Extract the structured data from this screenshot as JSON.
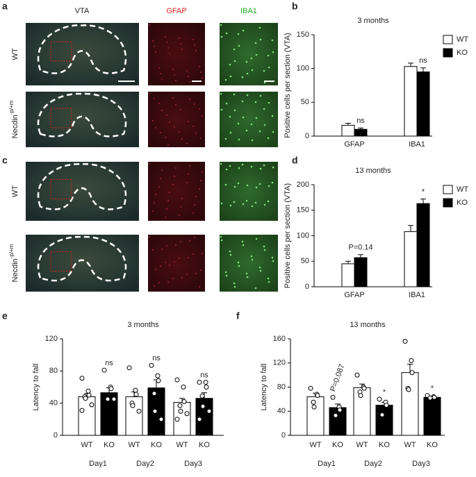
{
  "figure": {
    "panel_letters": [
      "a",
      "b",
      "c",
      "d",
      "e",
      "f"
    ],
    "image_columns": [
      "VTA",
      "GFAP",
      "IBA1"
    ],
    "row_label_wt": "WT",
    "row_label_mutant": "Necdin",
    "row_label_mutant_sup": "-p/+m"
  },
  "chart_data": [
    {
      "type": "bar",
      "title": "3 months",
      "ylabel": "Positive cells per section (VTA)",
      "categories": [
        "GFAP",
        "IBA1"
      ],
      "series": [
        {
          "name": "WT",
          "color": "#ffffff",
          "values": [
            16,
            103
          ],
          "errors": [
            3,
            5
          ],
          "annotations": [
            null,
            null
          ]
        },
        {
          "name": "KO",
          "color": "#000000",
          "values": [
            10,
            95
          ],
          "errors": [
            2,
            6
          ],
          "annotations": [
            "ns",
            "ns"
          ]
        }
      ],
      "ylim": [
        0,
        150
      ],
      "yticks": [
        0,
        50,
        100,
        150
      ],
      "legend": "top-right"
    },
    {
      "type": "bar",
      "title": "13 months",
      "ylabel": "Positive cells per section (VTA)",
      "categories": [
        "GFAP",
        "IBA1"
      ],
      "series": [
        {
          "name": "WT",
          "color": "#ffffff",
          "values": [
            45,
            108
          ],
          "errors": [
            5,
            12
          ],
          "annotations": [
            null,
            null
          ]
        },
        {
          "name": "KO",
          "color": "#000000",
          "values": [
            57,
            163
          ],
          "errors": [
            6,
            9
          ],
          "annotations": [
            "P=0.14",
            "*"
          ]
        }
      ],
      "ylim": [
        0,
        200
      ],
      "yticks": [
        0,
        50,
        100,
        150,
        200
      ],
      "legend": "top-right"
    },
    {
      "type": "bar",
      "title": "3 months",
      "ylabel": "Latency to fall",
      "categories": [
        "Day1",
        "Day2",
        "Day3"
      ],
      "series": [
        {
          "name": "WT",
          "color": "#ffffff",
          "values": [
            48,
            48,
            41
          ],
          "errors": [
            4,
            6,
            5
          ],
          "annotations": [
            null,
            null,
            null
          ],
          "points": [
            [
              71,
              55,
              50,
              48,
              46,
              38,
              31
            ],
            [
              84,
              56,
              51,
              40,
              37,
              30
            ],
            [
              69,
              60,
              42,
              37,
              30,
              27,
              20
            ]
          ]
        },
        {
          "name": "KO",
          "color": "#000000",
          "values": [
            53,
            59,
            46
          ],
          "errors": [
            6,
            10,
            7
          ],
          "annotations": [
            "ns",
            "ns",
            "ns"
          ],
          "points": [
            [
              81,
              60,
              58,
              45,
              45,
              45
            ],
            [
              87,
              74,
              68,
              52,
              30,
              20
            ],
            [
              66,
              66,
              60,
              49,
              36,
              30,
              20
            ]
          ]
        }
      ],
      "ylim": [
        0,
        120
      ],
      "yticks": [
        0,
        40,
        80,
        120
      ],
      "legend": "none",
      "series_names_under_bars": true
    },
    {
      "type": "bar",
      "title": "13 months",
      "ylabel": "Latency to fall",
      "categories": [
        "Day1",
        "Day2",
        "Day3"
      ],
      "series": [
        {
          "name": "WT",
          "color": "#ffffff",
          "values": [
            64,
            79,
            104
          ],
          "errors": [
            6,
            6,
            14
          ],
          "annotations": [
            null,
            null,
            null
          ],
          "points": [
            [
              78,
              68,
              66,
              55,
              47
            ],
            [
              100,
              80,
              78,
              72,
              66
            ],
            [
              156,
              124,
              104,
              78,
              76
            ]
          ]
        },
        {
          "name": "KO",
          "color": "#000000",
          "values": [
            46,
            50,
            63
          ],
          "errors": [
            6,
            5,
            2
          ],
          "annotations": [
            "P=0.087",
            "*",
            "*"
          ],
          "points": [
            [
              63,
              47,
              42,
              33
            ],
            [
              60,
              55,
              50,
              34
            ],
            [
              66,
              64,
              63,
              62
            ]
          ]
        }
      ],
      "ylim": [
        0,
        160
      ],
      "yticks": [
        0,
        40,
        80,
        120,
        160
      ],
      "legend": "none",
      "series_names_under_bars": true,
      "rotated_annotations": true
    }
  ]
}
